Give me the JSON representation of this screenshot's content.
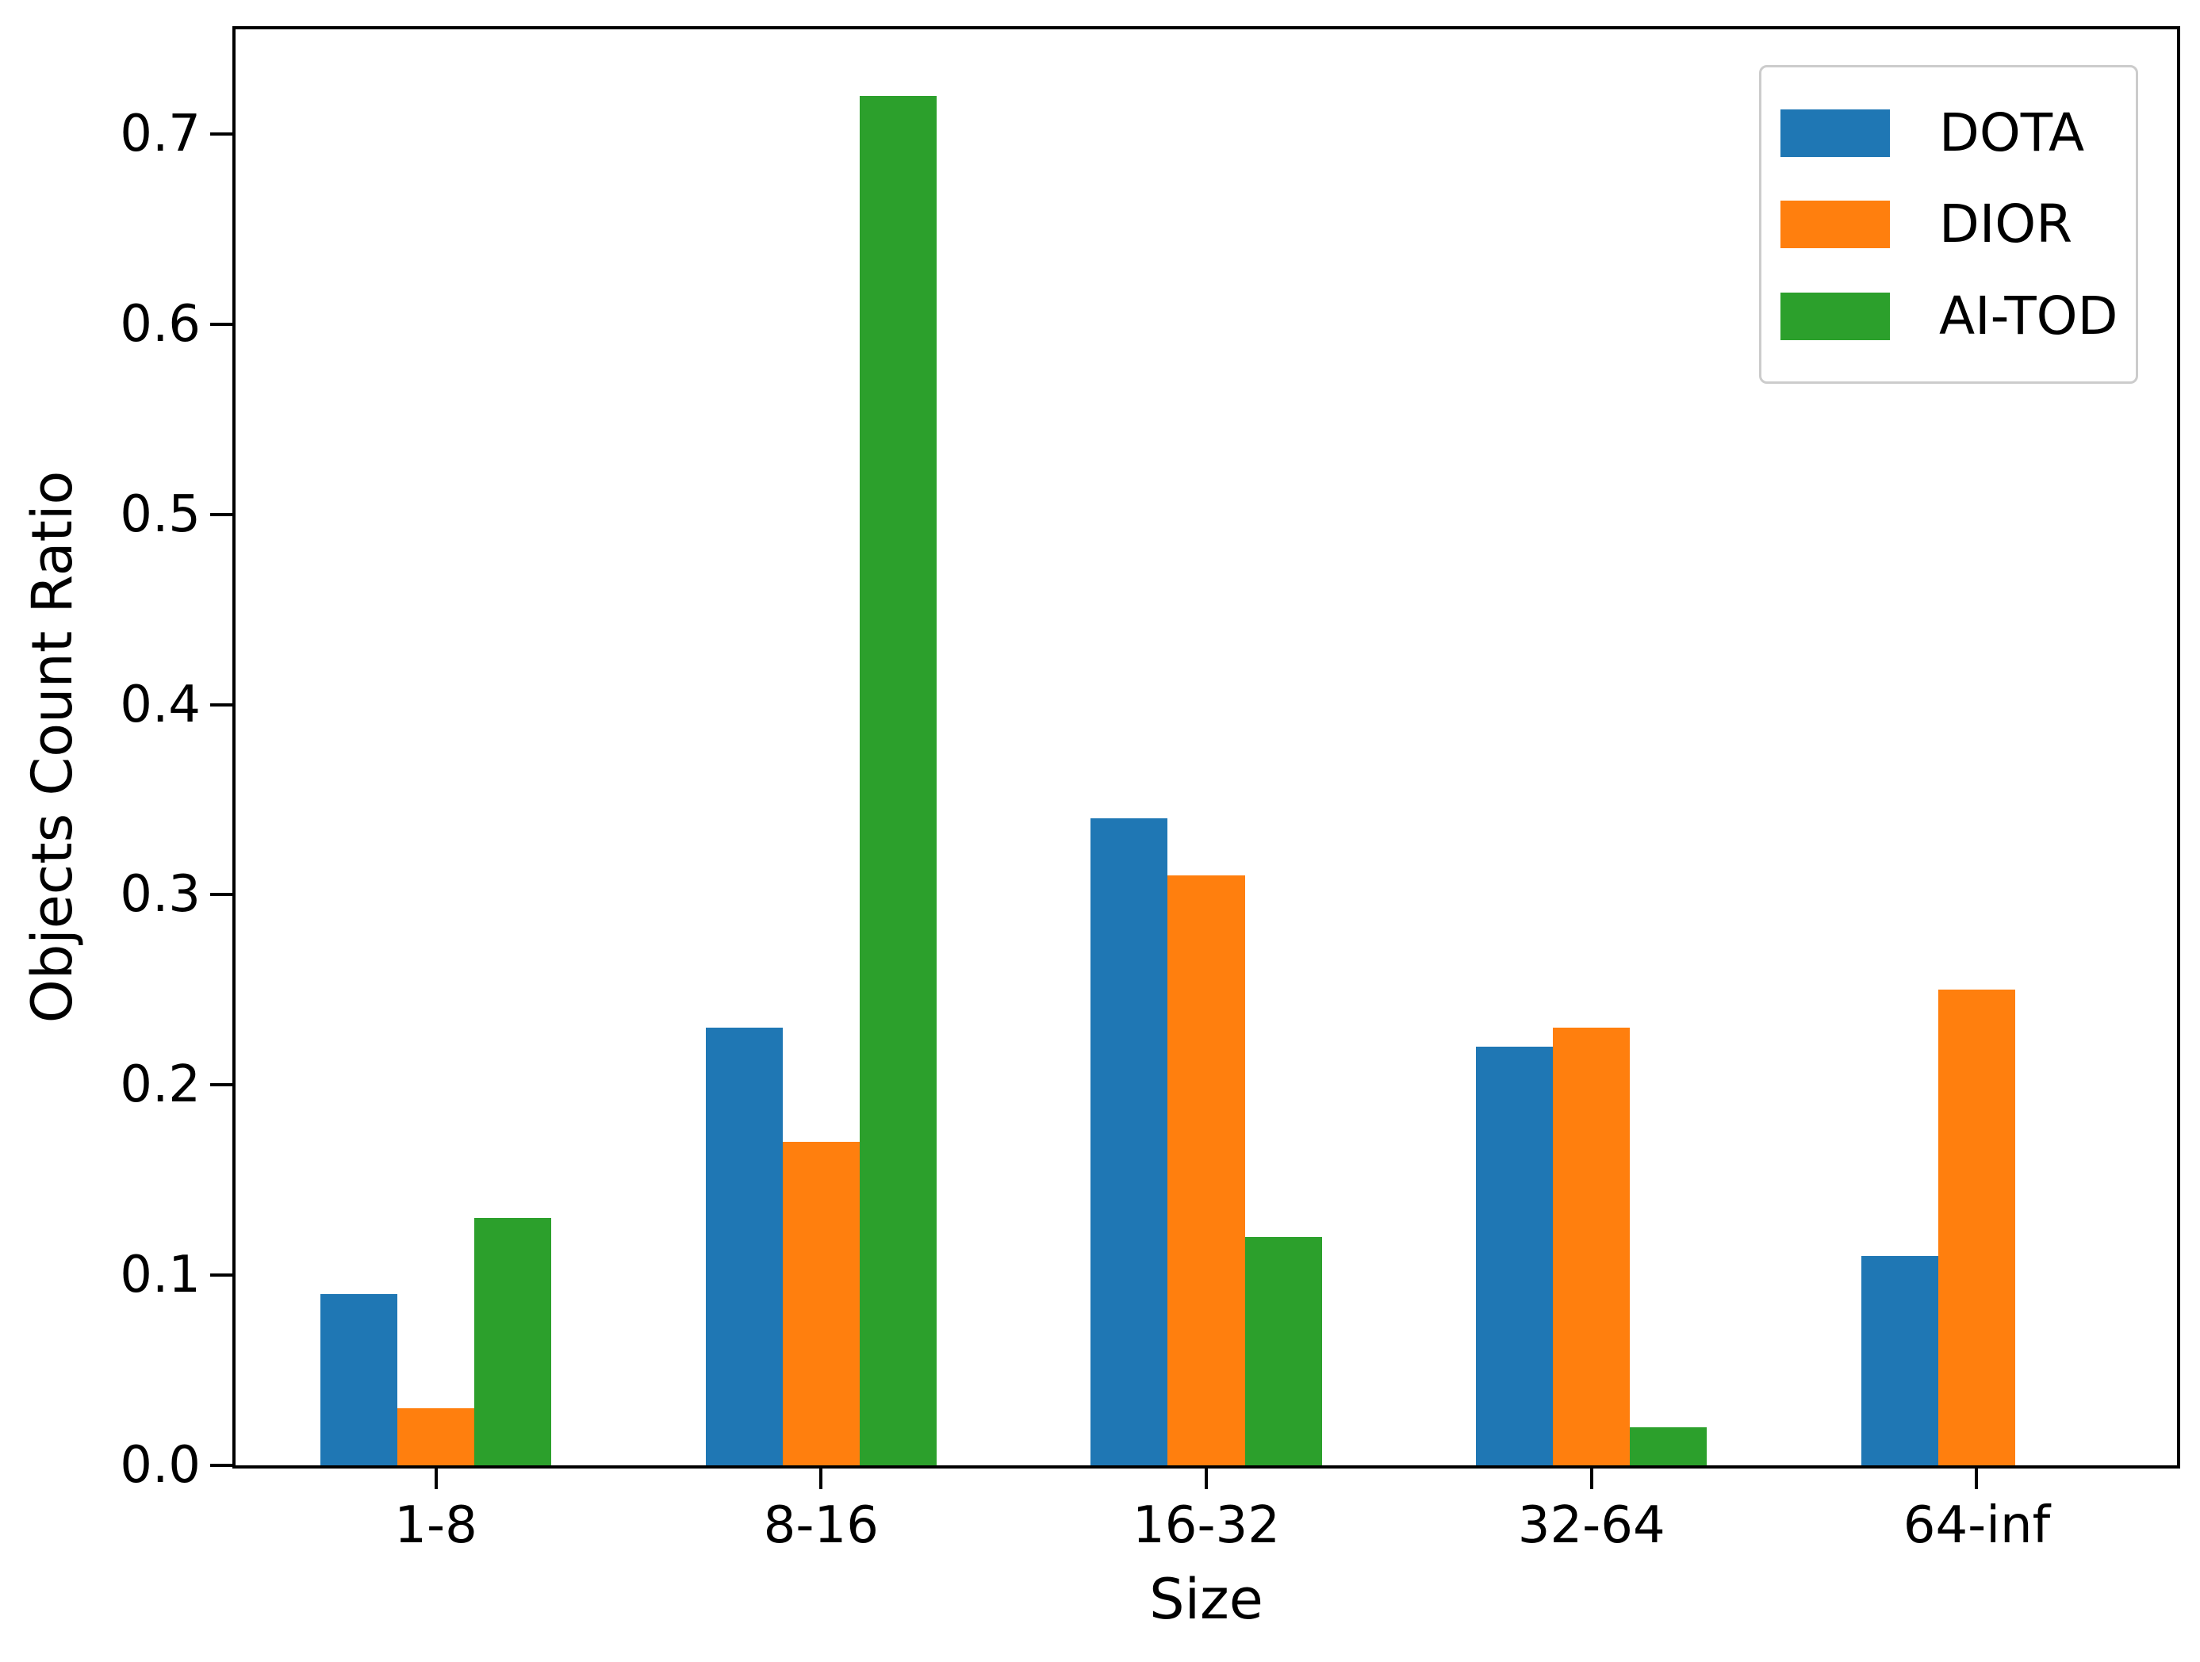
{
  "chart_data": {
    "type": "bar",
    "title": "",
    "xlabel": "Size",
    "ylabel": "Objects Count Ratio",
    "categories": [
      "1-8",
      "8-16",
      "16-32",
      "32-64",
      "64-inf"
    ],
    "series": [
      {
        "name": "DOTA",
        "color": "#1f77b4",
        "values": [
          0.09,
          0.23,
          0.34,
          0.22,
          0.11
        ]
      },
      {
        "name": "DIOR",
        "color": "#ff7f0e",
        "values": [
          0.03,
          0.17,
          0.31,
          0.23,
          0.25
        ]
      },
      {
        "name": "AI-TOD",
        "color": "#2ca02c",
        "values": [
          0.13,
          0.72,
          0.12,
          0.02,
          0.0
        ]
      }
    ],
    "ytick_labels": [
      "0.0",
      "0.1",
      "0.2",
      "0.3",
      "0.4",
      "0.5",
      "0.6",
      "0.7"
    ],
    "yticks": [
      0.0,
      0.1,
      0.2,
      0.3,
      0.4,
      0.5,
      0.6,
      0.7
    ],
    "ylim": [
      0,
      0.755
    ],
    "bar_width_ratio": 0.2,
    "grid": false,
    "legend": {
      "position": "upper right",
      "entries": [
        "DOTA",
        "DIOR",
        "AI-TOD"
      ]
    }
  }
}
